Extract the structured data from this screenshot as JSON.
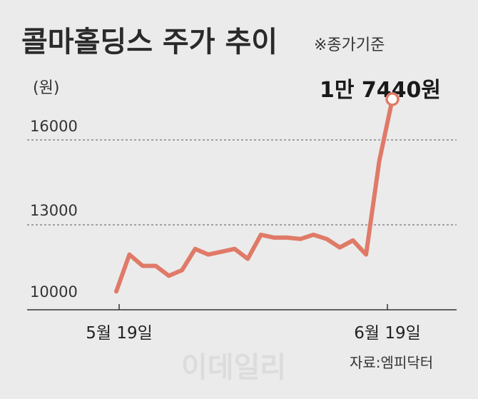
{
  "title": "콜마홀딩스 주가 추이",
  "subtitle": "※종가기준",
  "unit": "(원)",
  "annotation": "1만 7440원",
  "source": "자료:엠피닥터",
  "watermark": "이데일리",
  "colors": {
    "line": "#e07a68",
    "background": "#ebebeb",
    "grid": "#555555",
    "marker_fill": "#ffffff"
  },
  "chart_data": {
    "type": "line",
    "title": "콜마홀딩스 주가 추이",
    "ylabel": "(원)",
    "ylim": [
      10000,
      17500
    ],
    "y_ticks": [
      "16000",
      "13000",
      "10000"
    ],
    "x_ticks": [
      "5월 19일",
      "6월 19일"
    ],
    "series": [
      {
        "values": [
          10650,
          11950,
          11550,
          11550,
          11200,
          11400,
          12150,
          11950,
          12050,
          12150,
          11800,
          12650,
          12550,
          12550,
          12500,
          12650,
          12500,
          12200,
          12450,
          11950,
          15250,
          17440
        ]
      }
    ],
    "final_value": 17440,
    "grid": "horizontal-dashed",
    "legend": "none"
  }
}
